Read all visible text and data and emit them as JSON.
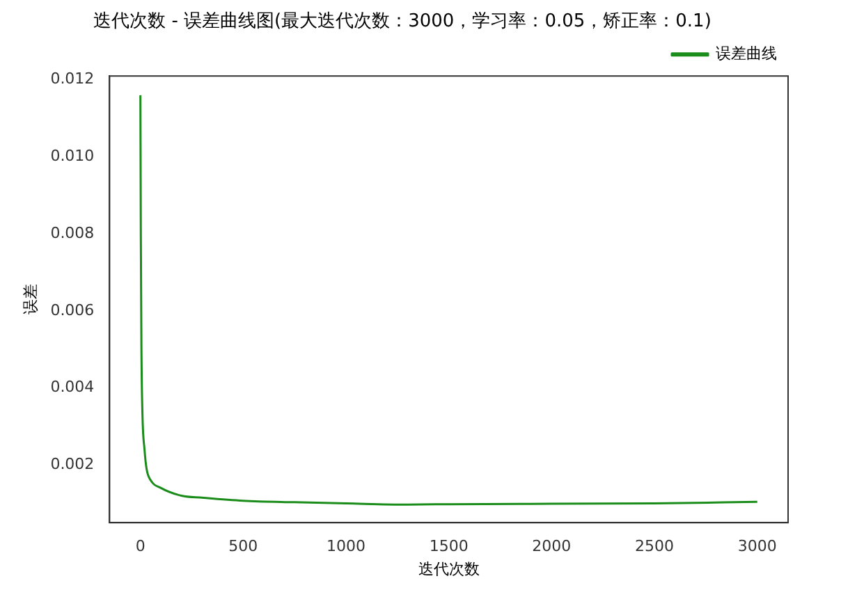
{
  "chart_data": {
    "type": "line",
    "title": "迭代次数 - 误差曲线图(最大迭代次数：3000，学习率：0.05，矫正率：0.1)",
    "xlabel": "迭代次数",
    "ylabel": "误差",
    "x": [
      0,
      2,
      5,
      10,
      20,
      30,
      50,
      100,
      200,
      300,
      500,
      750,
      1000,
      1300,
      1500,
      2000,
      2500,
      3000
    ],
    "series": [
      {
        "name": "误差曲线",
        "color": "#1a8c1a",
        "values": [
          0.0116,
          0.008,
          0.005,
          0.0033,
          0.0024,
          0.0019,
          0.0016,
          0.0014,
          0.0012,
          0.00115,
          0.00107,
          0.00103,
          0.001,
          0.00097,
          0.00098,
          0.00099,
          0.001,
          0.00104
        ]
      }
    ],
    "xlim": [
      -150,
      3150
    ],
    "xticks": [
      0,
      500,
      1000,
      1500,
      2000,
      2500,
      3000
    ],
    "ylim": [
      0.0005,
      0.0121
    ],
    "yticks": [
      {
        "value": 0.002,
        "label": "0.002"
      },
      {
        "value": 0.004,
        "label": "0.004"
      },
      {
        "value": 0.006,
        "label": "0.006"
      },
      {
        "value": 0.008,
        "label": "0.008"
      },
      {
        "value": 0.01,
        "label": "0.010"
      },
      {
        "value": 0.012,
        "label": "0.012"
      }
    ],
    "legend": "top right",
    "grid": false,
    "marker": "none",
    "line_style": "solid"
  }
}
